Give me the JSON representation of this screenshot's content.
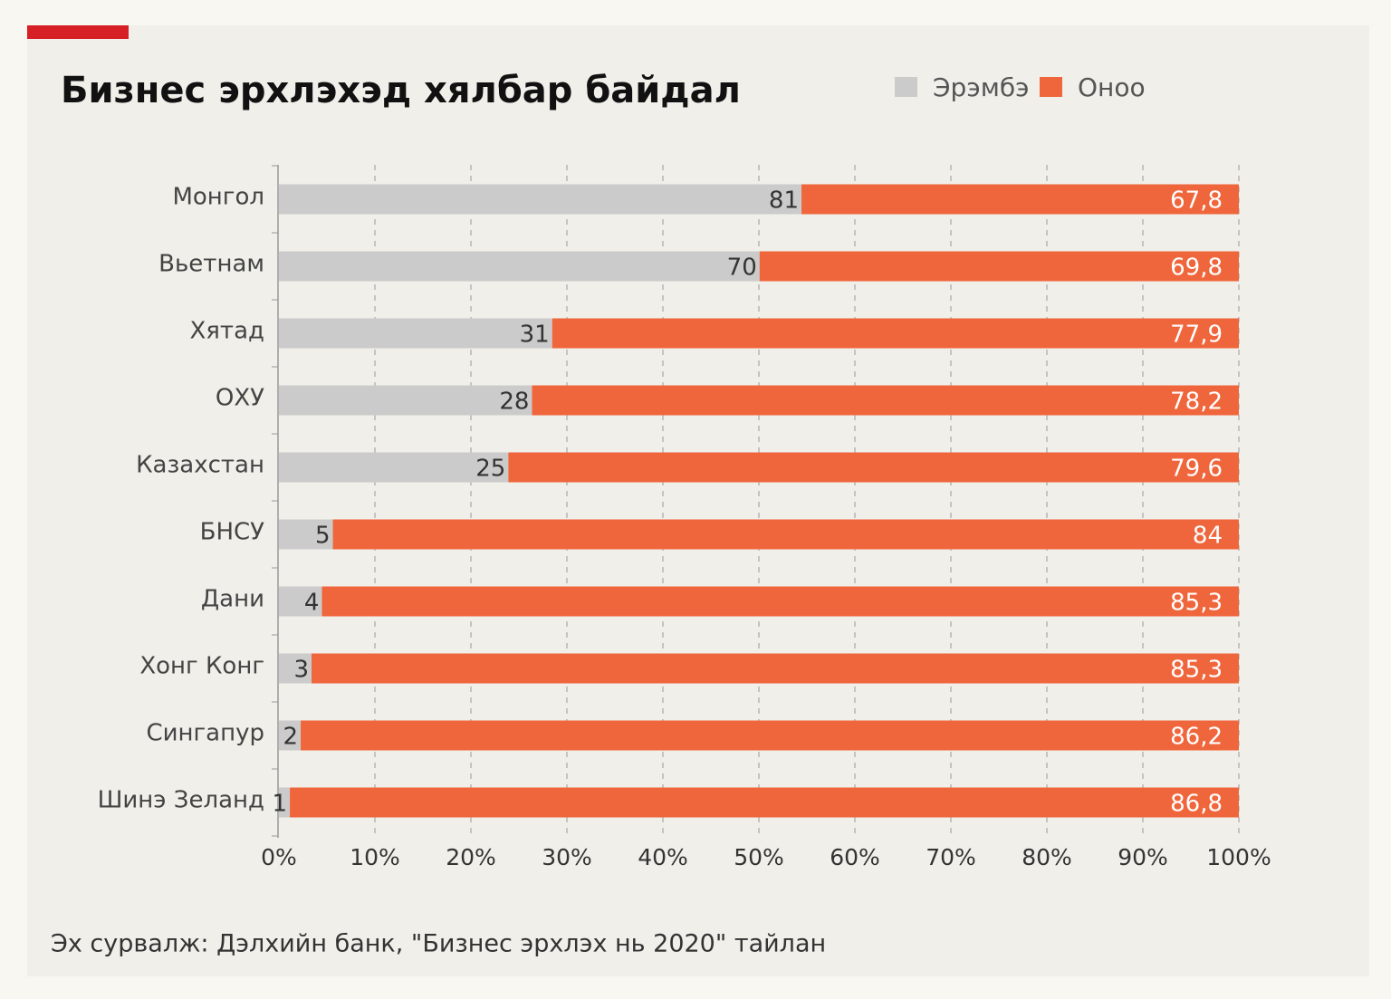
{
  "chart_data": {
    "type": "bar",
    "orientation": "horizontal",
    "stacking": "percent",
    "title": "Бизнес эрхлэхэд хялбар байдал",
    "source": "Эх сурвалж: Дэлхийн банк, \"Бизнес эрхлэх нь 2020\" тайлан",
    "categories": [
      "Монгол",
      "Вьетнам",
      "Хятад",
      "ОХУ",
      "Казахстан",
      "БНСУ",
      "Дани",
      "Хонг Конг",
      "Сингапур",
      "Шинэ Зеланд"
    ],
    "series": [
      {
        "name": "Эрэмбэ",
        "color": "#cbcbcb",
        "values": [
          81,
          70,
          31,
          28,
          25,
          5,
          4,
          3,
          2,
          1
        ]
      },
      {
        "name": "Оноо",
        "color": "#f0663c",
        "values": [
          67.8,
          69.8,
          77.9,
          78.2,
          79.6,
          84,
          85.3,
          85.3,
          86.2,
          86.8
        ],
        "value_labels": [
          "67,8",
          "69,8",
          "77,9",
          "78,2",
          "79,6",
          "84",
          "85,3",
          "85,3",
          "86,2",
          "86,8"
        ]
      }
    ],
    "xlim": [
      0,
      100
    ],
    "xticks": [
      {
        "value": 0,
        "label": "0%"
      },
      {
        "value": 10,
        "label": "10%"
      },
      {
        "value": 20,
        "label": "20%"
      },
      {
        "value": 30,
        "label": "30%"
      },
      {
        "value": 40,
        "label": "40%"
      },
      {
        "value": 50,
        "label": "50%"
      },
      {
        "value": 60,
        "label": "60%"
      },
      {
        "value": 70,
        "label": "70%"
      },
      {
        "value": 80,
        "label": "80%"
      },
      {
        "value": 90,
        "label": "90%"
      },
      {
        "value": 100,
        "label": "100%"
      }
    ],
    "grid": true,
    "legend": "top-right"
  }
}
